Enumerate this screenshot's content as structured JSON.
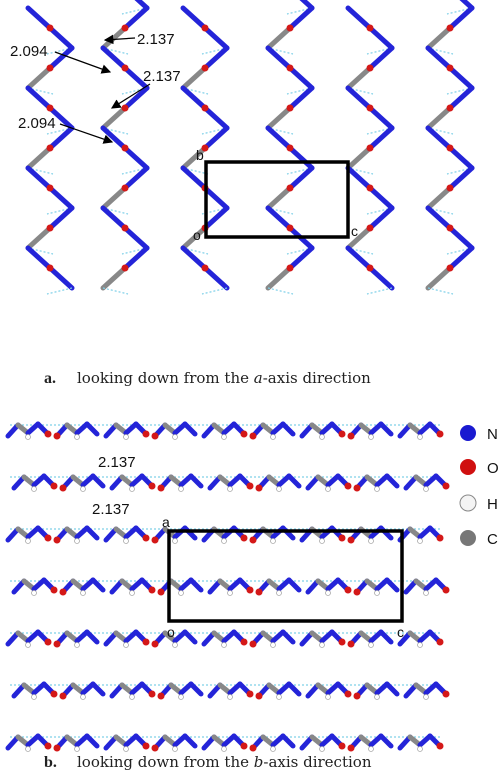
{
  "panel_a": {
    "distance_labels": [
      "2.137",
      "2.094",
      "2.137",
      "2.094"
    ],
    "axis_labels": [
      "b",
      "o",
      "c"
    ],
    "caption": {
      "label": "a.",
      "parts": [
        "looking down from the ",
        "a",
        "-axis direction"
      ]
    }
  },
  "panel_b": {
    "distance_labels": [
      "2.137",
      "2.137"
    ],
    "axis_labels": [
      "a",
      "o",
      "c"
    ],
    "caption": {
      "label": "b.",
      "parts": [
        "looking down from the ",
        "b",
        "-axis direction"
      ]
    }
  },
  "legend": [
    "N",
    "O",
    "H",
    "C"
  ]
}
